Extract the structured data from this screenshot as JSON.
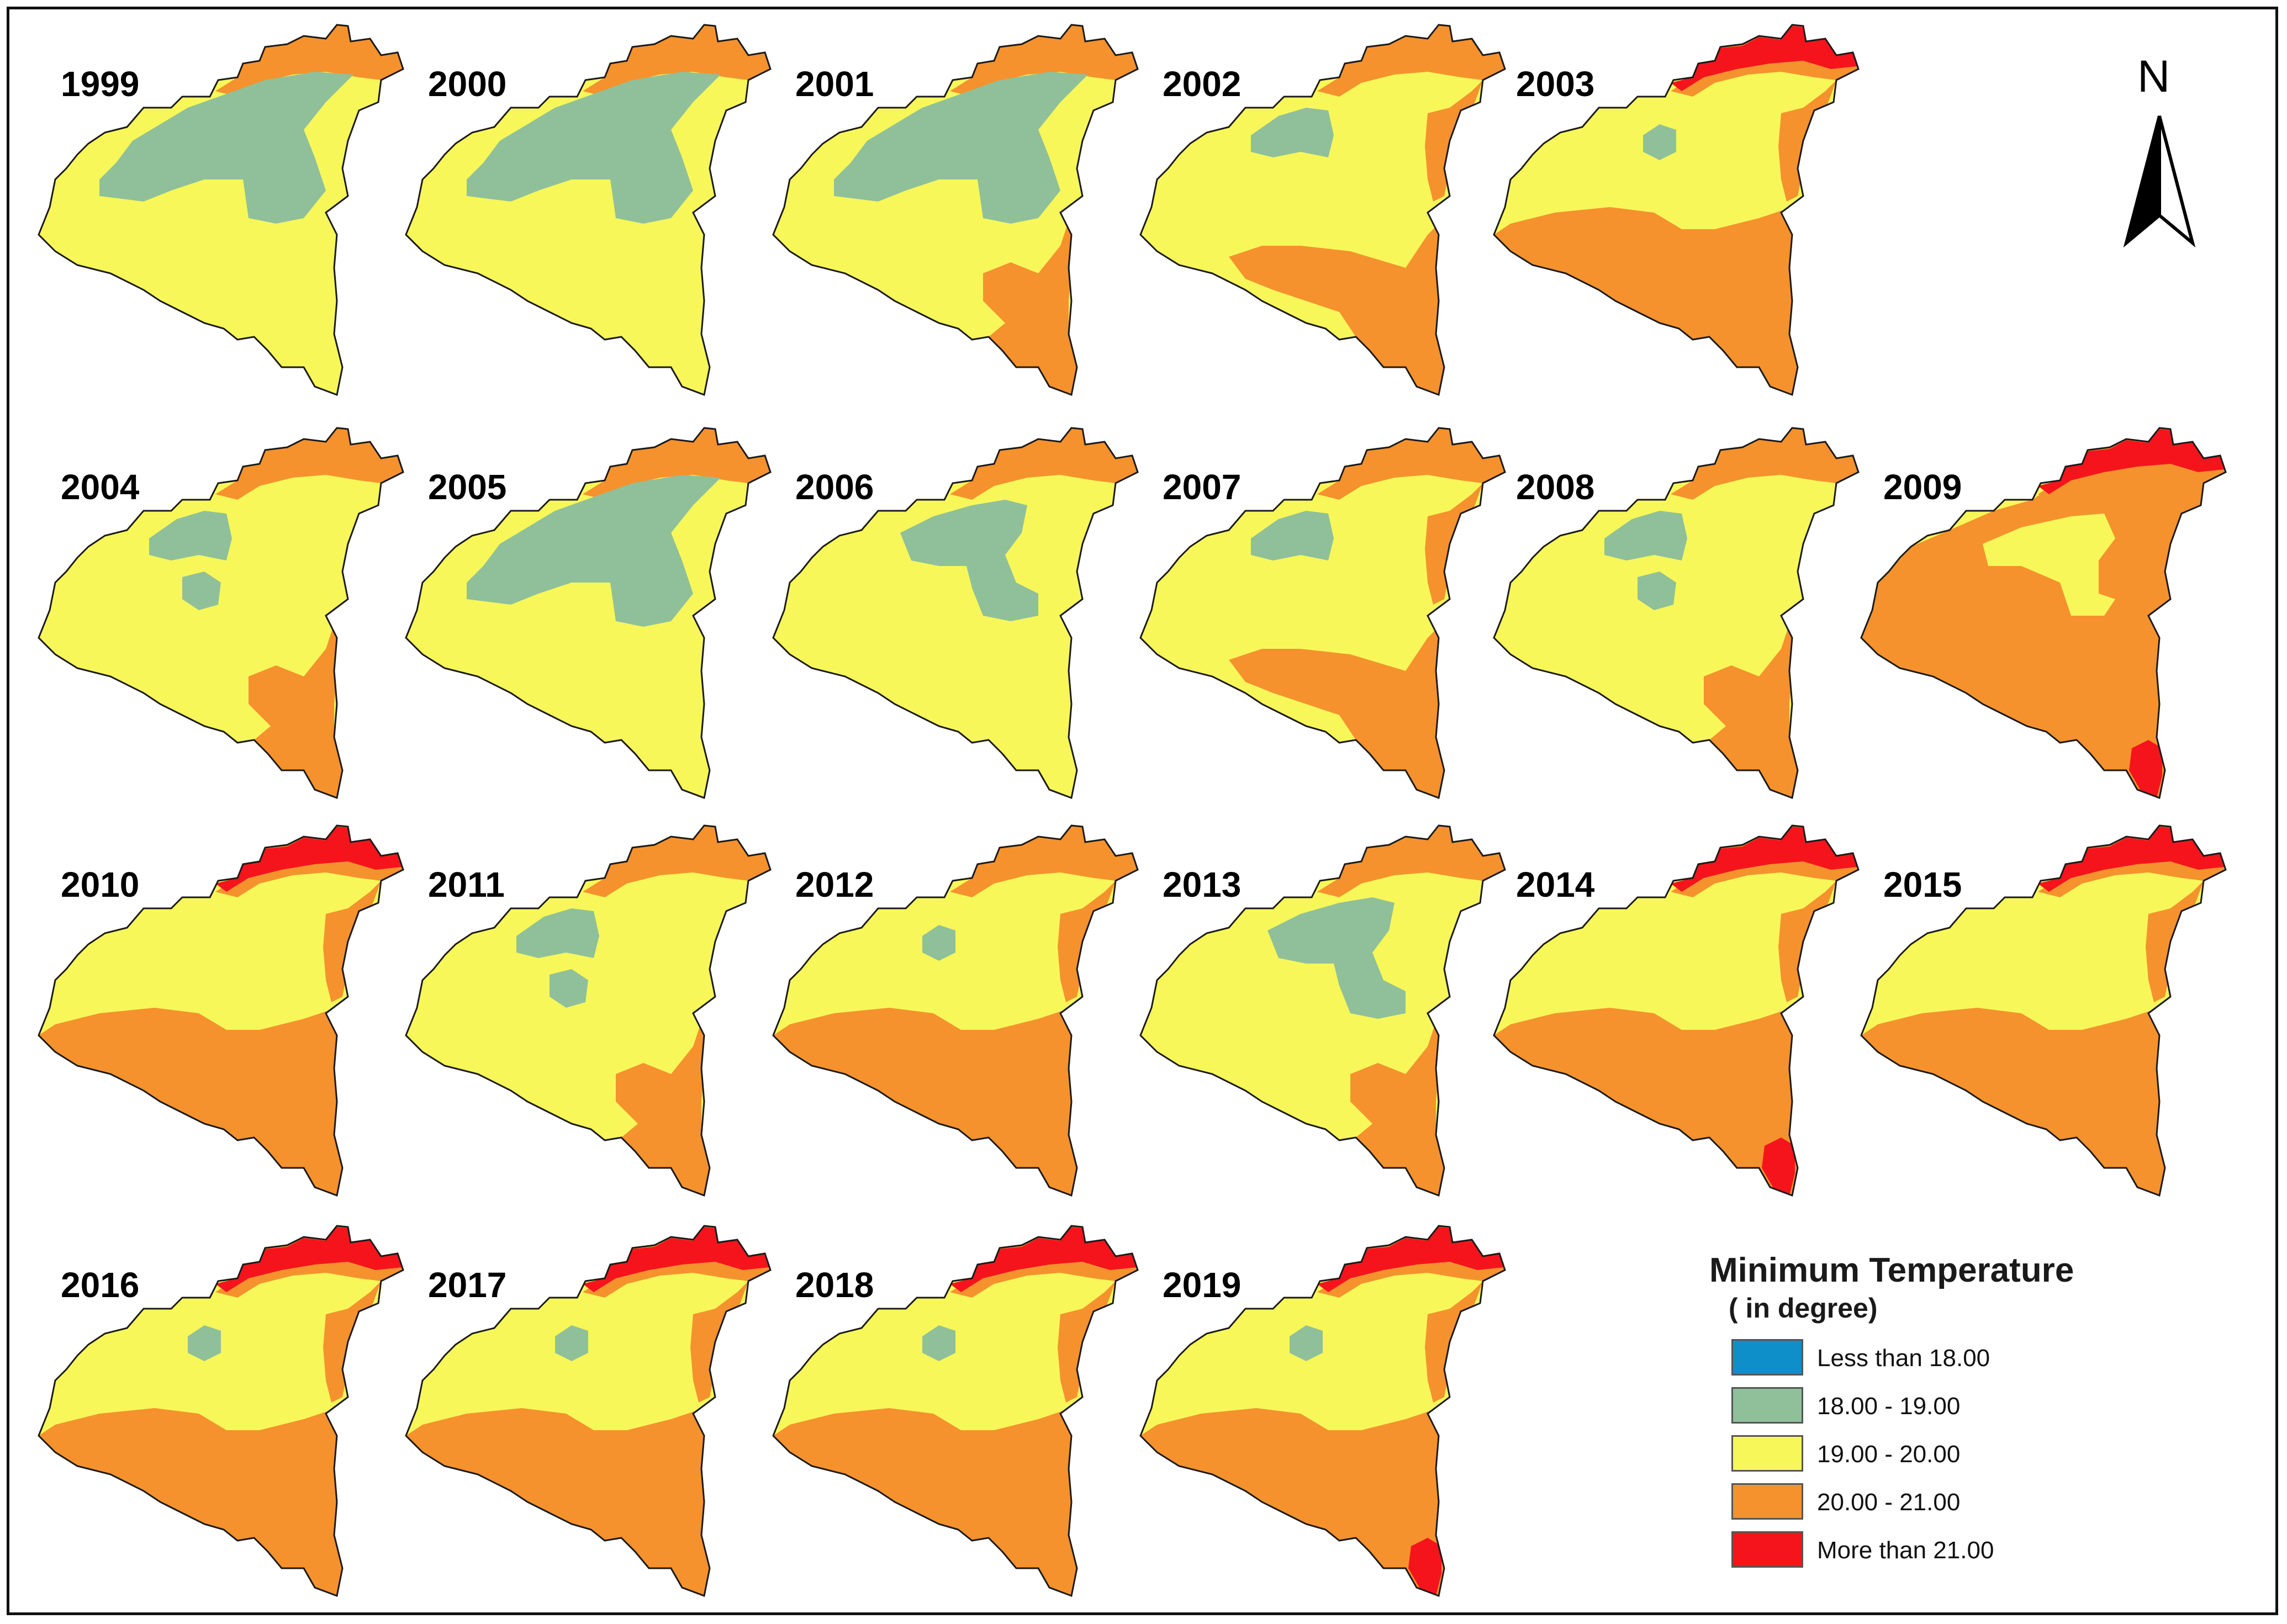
{
  "legend": {
    "title": "Minimum Temperature",
    "subtitle": "( in degree)",
    "items": [
      {
        "label": "Less than 18.00",
        "color": "#0e8fc9"
      },
      {
        "label": "18.00 - 19.00",
        "color": "#8fc09a"
      },
      {
        "label": "19.00 - 20.00",
        "color": "#f7f75a"
      },
      {
        "label": "20.00 - 21.00",
        "color": "#f5922d"
      },
      {
        "label": "More than 21.00",
        "color": "#f5141c"
      }
    ]
  },
  "north_arrow": {
    "letter": "N"
  },
  "outline_color": "#1a1a1a",
  "maps": [
    {
      "year": "1999",
      "zones": [
        "green-large"
      ]
    },
    {
      "year": "2000",
      "zones": [
        "green-large"
      ]
    },
    {
      "year": "2001",
      "zones": [
        "green-large",
        "orange-southeast"
      ]
    },
    {
      "year": "2002",
      "zones": [
        "green-small",
        "orange-south",
        "orange-east"
      ]
    },
    {
      "year": "2003",
      "zones": [
        "green-tiny",
        "orange-lower-half",
        "orange-east",
        "red-north"
      ]
    },
    {
      "year": "2004",
      "zones": [
        "green-small",
        "green-center",
        "orange-southeast"
      ]
    },
    {
      "year": "2005",
      "zones": [
        "green-large"
      ]
    },
    {
      "year": "2006",
      "zones": [
        "green-medium"
      ]
    },
    {
      "year": "2007",
      "zones": [
        "green-small",
        "orange-south",
        "orange-east"
      ]
    },
    {
      "year": "2008",
      "zones": [
        "green-small",
        "green-center",
        "orange-southeast"
      ]
    },
    {
      "year": "2009",
      "zones": [
        "orange-most",
        "red-north",
        "red-south"
      ]
    },
    {
      "year": "2010",
      "zones": [
        "orange-lower-half",
        "orange-east",
        "red-north"
      ]
    },
    {
      "year": "2011",
      "zones": [
        "green-small",
        "green-center",
        "orange-southeast"
      ]
    },
    {
      "year": "2012",
      "zones": [
        "green-tiny",
        "orange-lower-half",
        "orange-east"
      ]
    },
    {
      "year": "2013",
      "zones": [
        "green-medium",
        "orange-southeast"
      ]
    },
    {
      "year": "2014",
      "zones": [
        "orange-lower-half",
        "orange-east",
        "red-north",
        "red-south"
      ]
    },
    {
      "year": "2015",
      "zones": [
        "orange-lower-half",
        "orange-east",
        "red-north"
      ]
    },
    {
      "year": "2016",
      "zones": [
        "green-tiny",
        "orange-lower-half",
        "orange-east",
        "red-north"
      ]
    },
    {
      "year": "2017",
      "zones": [
        "green-tiny",
        "orange-lower-half",
        "orange-east",
        "red-north"
      ]
    },
    {
      "year": "2018",
      "zones": [
        "green-tiny",
        "orange-lower-half",
        "orange-east",
        "red-north"
      ]
    },
    {
      "year": "2019",
      "zones": [
        "green-tiny",
        "orange-lower-half",
        "orange-east",
        "red-north",
        "red-south"
      ]
    }
  ]
}
